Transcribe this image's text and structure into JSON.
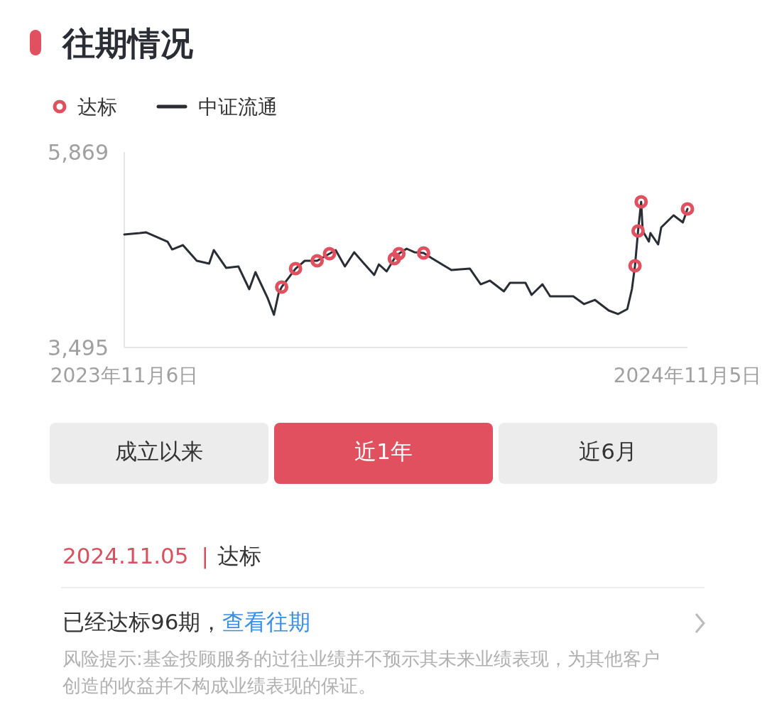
{
  "chart_data": {
    "type": "line",
    "title": "往期情况",
    "legend": "top left",
    "marker": "none",
    "line_style": "solid",
    "grid": false,
    "xlim": [
      "2023-11-06",
      "2024-11-05"
    ],
    "xticks": [
      {
        "value": "2023-11-06",
        "label": "2023年11月6日"
      },
      {
        "value": "2024-11-05",
        "label": "2024年11月5日"
      }
    ],
    "ylim": [
      3495,
      5869
    ],
    "yticks": [
      {
        "value": 3495,
        "label": "3,495"
      },
      {
        "value": 5869,
        "label": "5,869"
      }
    ],
    "series": [
      {
        "name": "达标",
        "type": "scatter",
        "marker": "circle",
        "color": "#e0505f",
        "x": [
          "2024-02-16",
          "2024-02-25",
          "2024-03-10",
          "2024-03-18",
          "2024-04-29",
          "2024-05-02",
          "2024-05-18",
          "2024-10-02",
          "2024-10-04",
          "2024-10-06",
          "2024-11-05"
        ],
        "values": [
          4229,
          4453,
          4548,
          4635,
          4574,
          4635,
          4643,
          4488,
          4911,
          5265,
          5178
        ]
      },
      {
        "name": "中证流通",
        "type": "line",
        "color": "#2b2d35",
        "x": [
          "2023-11-06",
          "2023-11-16",
          "2023-11-20",
          "2023-12-04",
          "2023-12-07",
          "2023-12-14",
          "2023-12-23",
          "2023-12-31",
          "2024-01-03",
          "2024-01-11",
          "2024-01-19",
          "2024-01-26",
          "2024-01-30",
          "2024-02-07",
          "2024-02-11",
          "2024-02-14",
          "2024-02-16",
          "2024-02-25",
          "2024-03-02",
          "2024-03-10",
          "2024-03-18",
          "2024-03-22",
          "2024-03-28",
          "2024-04-03",
          "2024-04-09",
          "2024-04-16",
          "2024-04-19",
          "2024-04-24",
          "2024-04-29",
          "2024-05-02",
          "2024-05-07",
          "2024-05-12",
          "2024-05-18",
          "2024-05-23",
          "2024-06-05",
          "2024-06-17",
          "2024-06-24",
          "2024-06-30",
          "2024-07-09",
          "2024-07-13",
          "2024-07-23",
          "2024-07-27",
          "2024-08-03",
          "2024-08-08",
          "2024-08-23",
          "2024-08-30",
          "2024-09-06",
          "2024-09-15",
          "2024-09-21",
          "2024-09-27",
          "2024-09-30",
          "2024-10-02",
          "2024-10-04",
          "2024-10-06",
          "2024-10-07",
          "2024-10-11",
          "2024-10-12",
          "2024-10-17",
          "2024-10-19",
          "2024-10-27",
          "2024-11-02",
          "2024-11-05"
        ],
        "values": [
          4868,
          4885,
          4894,
          4781,
          4686,
          4738,
          4548,
          4514,
          4678,
          4462,
          4479,
          4203,
          4410,
          4091,
          3892,
          4151,
          4229,
          4453,
          4548,
          4548,
          4635,
          4678,
          4479,
          4652,
          4522,
          4376,
          4505,
          4419,
          4574,
          4635,
          4695,
          4652,
          4643,
          4583,
          4436,
          4453,
          4263,
          4307,
          4177,
          4281,
          4281,
          4134,
          4263,
          4117,
          4117,
          4022,
          4073,
          3944,
          3901,
          3961,
          4203,
          4488,
          4911,
          5265,
          4911,
          4781,
          4885,
          4747,
          4954,
          5101,
          5014,
          5178
        ]
      }
    ],
    "annotations": [
      "成立以来",
      "近1年",
      "近6月",
      "2024.11.05",
      "|",
      "达标",
      "已经达标96期，",
      "查看往期",
      "风险提示:基金投顾服务的过往业绩并不预示其未来业绩表现，为其他客户创造的收益并不构成业绩表现的保证。"
    ]
  }
}
